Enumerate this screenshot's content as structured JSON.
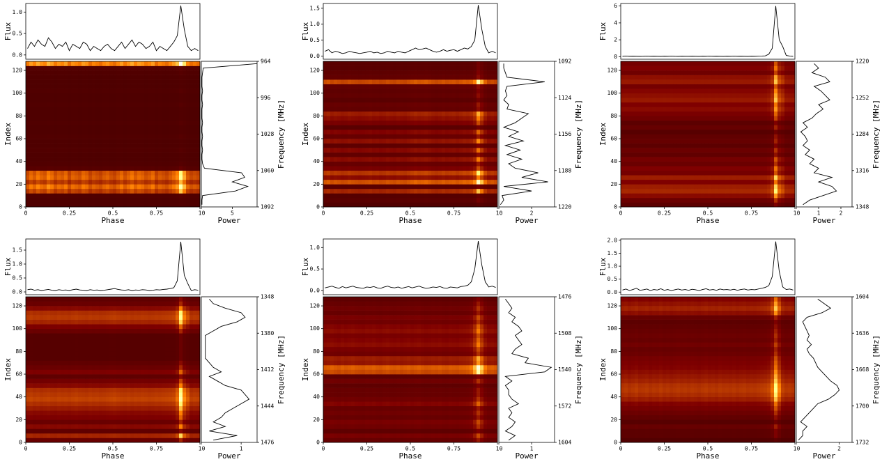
{
  "chart_data": {
    "type": "pulse_waterfall_grid",
    "flux_label": "Flux",
    "index_label": "Index",
    "phase_label": "Phase",
    "power_label": "Power",
    "frequency_label": "Frequency [MHz]",
    "xlim": [
      0,
      1
    ],
    "xticks": [
      0,
      0.25,
      0.5,
      0.75,
      1
    ],
    "ylim": [
      0,
      128
    ],
    "yticks": [
      0,
      20,
      40,
      60,
      80,
      100,
      120
    ],
    "phase": [
      0.01,
      0.03,
      0.05,
      0.07,
      0.09,
      0.11,
      0.13,
      0.15,
      0.17,
      0.19,
      0.21,
      0.23,
      0.25,
      0.27,
      0.29,
      0.31,
      0.33,
      0.35,
      0.37,
      0.39,
      0.41,
      0.43,
      0.45,
      0.47,
      0.49,
      0.51,
      0.53,
      0.55,
      0.57,
      0.59,
      0.61,
      0.63,
      0.65,
      0.67,
      0.69,
      0.71,
      0.73,
      0.75,
      0.77,
      0.79,
      0.81,
      0.83,
      0.85,
      0.87,
      0.89,
      0.91,
      0.93,
      0.95,
      0.97,
      0.99
    ],
    "index": [
      2,
      6,
      10,
      14,
      18,
      22,
      26,
      30,
      34,
      38,
      42,
      46,
      50,
      54,
      58,
      62,
      66,
      70,
      74,
      78,
      82,
      86,
      90,
      94,
      98,
      102,
      106,
      110,
      114,
      118,
      122,
      126
    ],
    "panels": [
      {
        "flux_ylim": [
          -0.1,
          1.2
        ],
        "flux_yticks": [
          {
            "value": 0,
            "label": "0.0"
          },
          {
            "value": 0.5,
            "label": "0.5"
          },
          {
            "value": 1,
            "label": "1.0"
          }
        ],
        "flux": [
          0.15,
          0.3,
          0.2,
          0.35,
          0.25,
          0.2,
          0.4,
          0.3,
          0.15,
          0.25,
          0.2,
          0.3,
          0.1,
          0.25,
          0.2,
          0.15,
          0.3,
          0.25,
          0.1,
          0.2,
          0.15,
          0.1,
          0.2,
          0.25,
          0.15,
          0.1,
          0.2,
          0.3,
          0.15,
          0.25,
          0.35,
          0.2,
          0.3,
          0.25,
          0.15,
          0.2,
          0.3,
          0.1,
          0.2,
          0.15,
          0.1,
          0.2,
          0.3,
          0.45,
          1.15,
          0.6,
          0.2,
          0.1,
          0.15,
          0.1
        ],
        "power_xlim": [
          0,
          9
        ],
        "power_xticks": [
          0,
          5
        ],
        "power": [
          0.1,
          0.1,
          0.2,
          5.5,
          7.5,
          5.0,
          7.0,
          6.5,
          0.5,
          0.2,
          0.1,
          0.1,
          0.2,
          0.1,
          0.1,
          0.2,
          0.1,
          0.1,
          0.2,
          0.1,
          0.1,
          0.1,
          0.2,
          0.1,
          0.1,
          0.2,
          0.1,
          0.1,
          0.1,
          0.2,
          0.3,
          9.0
        ],
        "y2lim": [
          1092,
          964
        ],
        "y2ticks": [
          964,
          996,
          1028,
          1060,
          1092
        ]
      },
      {
        "flux_ylim": [
          -0.1,
          1.65
        ],
        "flux_yticks": [
          {
            "value": 0,
            "label": "0.0"
          },
          {
            "value": 0.5,
            "label": "0.5"
          },
          {
            "value": 1,
            "label": "1.0"
          },
          {
            "value": 1.5,
            "label": "1.5"
          }
        ],
        "flux": [
          0.15,
          0.2,
          0.1,
          0.15,
          0.12,
          0.08,
          0.1,
          0.15,
          0.12,
          0.1,
          0.08,
          0.1,
          0.12,
          0.15,
          0.1,
          0.12,
          0.08,
          0.1,
          0.15,
          0.12,
          0.1,
          0.15,
          0.12,
          0.1,
          0.15,
          0.2,
          0.25,
          0.2,
          0.22,
          0.25,
          0.2,
          0.15,
          0.12,
          0.15,
          0.2,
          0.15,
          0.18,
          0.2,
          0.15,
          0.2,
          0.25,
          0.22,
          0.3,
          0.5,
          1.6,
          0.85,
          0.3,
          0.1,
          0.15,
          0.1
        ],
        "power_xlim": [
          0,
          3.4
        ],
        "power_xticks": [
          0,
          2
        ],
        "power": [
          0.1,
          0.3,
          0.2,
          2.0,
          0.3,
          3.0,
          1.4,
          2.4,
          1.0,
          0.6,
          1.4,
          0.5,
          1.3,
          0.4,
          1.5,
          0.6,
          1.2,
          0.3,
          1.0,
          1.4,
          1.8,
          0.5,
          0.6,
          0.3,
          0.5,
          0.4,
          0.5,
          2.8,
          0.5,
          0.4,
          0.3,
          0.3
        ],
        "y2lim": [
          1220,
          1092
        ],
        "y2ticks": [
          1092,
          1124,
          1156,
          1188,
          1220
        ]
      },
      {
        "flux_ylim": [
          -0.3,
          6.3
        ],
        "flux_yticks": [
          0,
          2,
          4,
          6
        ],
        "flux": [
          0.05,
          0.08,
          0.05,
          0.06,
          0.05,
          0.04,
          0.05,
          0.07,
          0.05,
          0.06,
          0.05,
          0.04,
          0.06,
          0.05,
          0.07,
          0.05,
          0.04,
          0.06,
          0.05,
          0.05,
          0.06,
          0.05,
          0.04,
          0.06,
          0.05,
          0.07,
          0.05,
          0.06,
          0.05,
          0.04,
          0.06,
          0.05,
          0.07,
          0.05,
          0.06,
          0.05,
          0.04,
          0.06,
          0.05,
          0.07,
          0.08,
          0.1,
          0.3,
          1.0,
          6.0,
          2.0,
          1.2,
          0.15,
          0.08,
          0.05
        ],
        "power_xlim": [
          0,
          2.5
        ],
        "power_xticks": [
          0,
          1,
          2
        ],
        "power": [
          0.3,
          0.6,
          1.2,
          1.8,
          1.6,
          1.0,
          1.6,
          0.8,
          1.0,
          0.6,
          0.8,
          0.4,
          0.6,
          0.3,
          0.5,
          0.4,
          0.2,
          0.5,
          0.3,
          0.7,
          0.9,
          1.2,
          1.0,
          1.5,
          1.3,
          1.1,
          0.8,
          1.5,
          1.3,
          0.7,
          1.0,
          0.8
        ],
        "y2lim": [
          1348,
          1220
        ],
        "y2ticks": [
          1220,
          1252,
          1284,
          1316,
          1348
        ]
      },
      {
        "flux_ylim": [
          -0.1,
          1.9
        ],
        "flux_yticks": [
          {
            "value": 0,
            "label": "0.0"
          },
          {
            "value": 0.5,
            "label": "0.5"
          },
          {
            "value": 1,
            "label": "1.0"
          },
          {
            "value": 1.5,
            "label": "1.5"
          }
        ],
        "flux": [
          0.08,
          0.1,
          0.06,
          0.08,
          0.05,
          0.07,
          0.09,
          0.06,
          0.05,
          0.08,
          0.06,
          0.07,
          0.05,
          0.08,
          0.1,
          0.07,
          0.06,
          0.05,
          0.08,
          0.06,
          0.07,
          0.05,
          0.06,
          0.08,
          0.1,
          0.12,
          0.09,
          0.07,
          0.06,
          0.08,
          0.05,
          0.07,
          0.06,
          0.08,
          0.07,
          0.05,
          0.06,
          0.08,
          0.07,
          0.09,
          0.1,
          0.12,
          0.15,
          0.4,
          1.8,
          0.6,
          0.3,
          0.05,
          0.08,
          0.06
        ],
        "power_xlim": [
          0,
          1.4
        ],
        "power_xticks": [
          0,
          1
        ],
        "power": [
          0.3,
          0.9,
          0.2,
          0.6,
          0.3,
          0.5,
          0.6,
          0.8,
          1.0,
          1.2,
          1.1,
          1.0,
          0.6,
          0.4,
          0.2,
          0.5,
          0.3,
          0.2,
          0.1,
          0.1,
          0.1,
          0.1,
          0.1,
          0.1,
          0.3,
          0.5,
          0.9,
          1.1,
          1.0,
          0.6,
          0.3,
          0.2
        ],
        "y2lim": [
          1476,
          1348
        ],
        "y2ticks": [
          1348,
          1380,
          1412,
          1444,
          1476
        ]
      },
      {
        "flux_ylim": [
          -0.1,
          1.2
        ],
        "flux_yticks": [
          {
            "value": 0,
            "label": "0.0"
          },
          {
            "value": 0.5,
            "label": "0.5"
          },
          {
            "value": 1,
            "label": "1.0"
          }
        ],
        "flux": [
          0.06,
          0.08,
          0.1,
          0.07,
          0.05,
          0.09,
          0.06,
          0.08,
          0.1,
          0.07,
          0.06,
          0.05,
          0.08,
          0.07,
          0.09,
          0.06,
          0.05,
          0.08,
          0.1,
          0.07,
          0.06,
          0.08,
          0.05,
          0.07,
          0.09,
          0.06,
          0.08,
          0.1,
          0.07,
          0.05,
          0.06,
          0.08,
          0.07,
          0.09,
          0.06,
          0.05,
          0.08,
          0.07,
          0.06,
          0.09,
          0.1,
          0.12,
          0.2,
          0.5,
          1.15,
          0.6,
          0.2,
          0.08,
          0.1,
          0.07
        ],
        "power_xlim": [
          0,
          1.7
        ],
        "power_xticks": [
          0,
          1
        ],
        "power": [
          0.3,
          0.5,
          0.2,
          0.4,
          0.5,
          0.3,
          0.4,
          0.3,
          0.6,
          0.4,
          0.3,
          0.3,
          0.2,
          0.4,
          0.2,
          1.4,
          1.6,
          0.8,
          0.9,
          0.4,
          0.5,
          0.7,
          0.6,
          0.5,
          0.7,
          0.6,
          0.4,
          0.5,
          0.3,
          0.4,
          0.3,
          0.2
        ],
        "y2lim": [
          1604,
          1476
        ],
        "y2ticks": [
          1476,
          1508,
          1540,
          1572,
          1604
        ]
      },
      {
        "flux_ylim": [
          -0.1,
          2.05
        ],
        "flux_yticks": [
          {
            "value": 0,
            "label": "0.0"
          },
          {
            "value": 0.5,
            "label": "0.5"
          },
          {
            "value": 1,
            "label": "1.0"
          },
          {
            "value": 1.5,
            "label": "1.5"
          },
          {
            "value": 2,
            "label": "2.0"
          }
        ],
        "flux": [
          0.08,
          0.12,
          0.06,
          0.1,
          0.15,
          0.07,
          0.09,
          0.12,
          0.06,
          0.1,
          0.08,
          0.13,
          0.07,
          0.1,
          0.06,
          0.09,
          0.12,
          0.08,
          0.1,
          0.07,
          0.11,
          0.09,
          0.06,
          0.1,
          0.13,
          0.08,
          0.1,
          0.07,
          0.12,
          0.09,
          0.1,
          0.08,
          0.11,
          0.07,
          0.1,
          0.12,
          0.08,
          0.1,
          0.09,
          0.12,
          0.15,
          0.18,
          0.25,
          0.6,
          1.95,
          0.8,
          0.2,
          0.1,
          0.12,
          0.08
        ],
        "power_xlim": [
          0,
          2.6
        ],
        "power_xticks": [
          0,
          2
        ],
        "power": [
          0.1,
          0.3,
          0.3,
          0.5,
          0.2,
          0.4,
          0.6,
          0.8,
          1.0,
          1.5,
          1.8,
          2.0,
          1.9,
          1.6,
          1.4,
          1.2,
          1.0,
          0.9,
          0.8,
          0.6,
          0.5,
          0.7,
          0.5,
          0.6,
          0.5,
          0.4,
          0.3,
          0.5,
          1.2,
          1.6,
          1.3,
          1.0
        ],
        "y2lim": [
          1732,
          1604
        ],
        "y2ticks": [
          1604,
          1636,
          1668,
          1700,
          1732
        ]
      }
    ]
  }
}
